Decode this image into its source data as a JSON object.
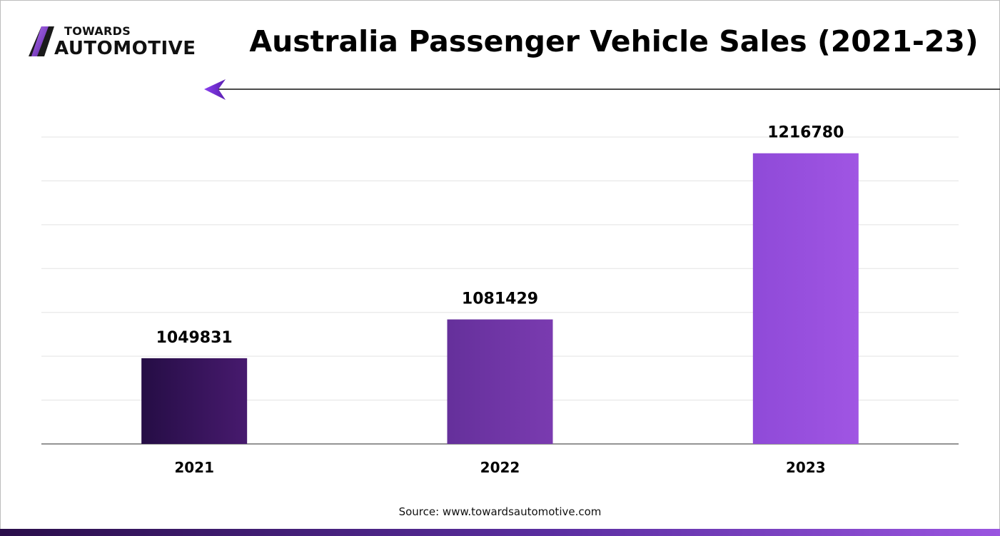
{
  "brand": {
    "line1": "TOWARDS",
    "line2": "AUTOMOTIVE",
    "accent_color": "#7b3fc4"
  },
  "chart_data": {
    "type": "bar",
    "title": "Australia Passenger Vehicle Sales (2021-23)",
    "categories": [
      "2021",
      "2022",
      "2023"
    ],
    "values": [
      1049831,
      1081429,
      1216780
    ],
    "value_labels": [
      "1049831",
      "1081429",
      "1216780"
    ],
    "bar_colors": [
      [
        "#250d45",
        "#471a6e"
      ],
      [
        "#65309b",
        "#7a3bb0"
      ],
      [
        "#8f4ad8",
        "#a055e3"
      ]
    ],
    "grid": true,
    "legend": "none",
    "ylim": [
      980000,
      1230000
    ]
  },
  "source": "Source: www.towardsautomotive.com"
}
